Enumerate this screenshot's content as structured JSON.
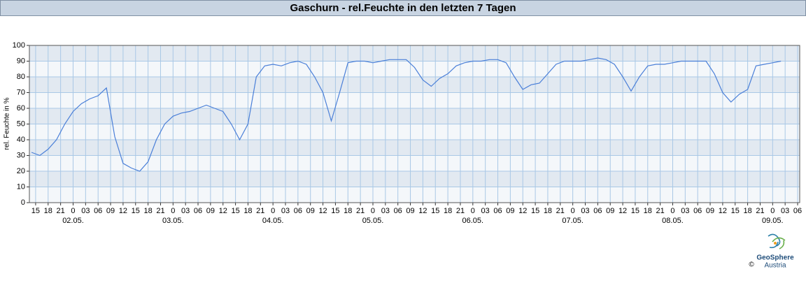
{
  "chart_data": {
    "type": "line",
    "title": "Gaschurn - rel.Feuchte in den letzten 7 Tagen",
    "ylabel": "rel. Feuchte in %",
    "x": [
      14,
      16,
      18,
      20,
      22,
      24,
      26,
      28,
      30,
      32,
      34,
      36,
      38,
      40,
      42,
      44,
      46,
      48,
      50,
      52,
      54,
      56,
      58,
      60,
      62,
      64,
      66,
      68,
      70,
      72,
      74,
      76,
      78,
      80,
      82,
      84,
      86,
      88,
      90,
      92,
      94,
      96,
      98,
      100,
      102,
      104,
      106,
      108,
      110,
      112,
      114,
      116,
      118,
      120,
      122,
      124,
      126,
      128,
      130,
      132,
      134,
      136,
      138,
      140,
      142,
      144,
      146,
      148,
      150,
      152,
      154,
      156,
      158,
      160,
      162,
      164,
      166,
      168,
      170,
      172,
      174,
      176,
      178,
      180,
      182,
      184,
      186,
      188,
      190,
      192,
      194
    ],
    "series": [
      {
        "color": "#4a7fd8",
        "values": [
          32,
          30,
          34,
          40,
          50,
          58,
          63,
          66,
          68,
          73,
          42,
          25,
          22,
          20,
          26,
          40,
          50,
          55,
          57,
          58,
          60,
          62,
          60,
          58,
          50,
          40,
          50,
          80,
          87,
          88,
          87,
          89,
          90,
          88,
          80,
          70,
          52,
          70,
          89,
          90,
          90,
          89,
          90,
          91,
          91,
          91,
          86,
          78,
          74,
          79,
          82,
          87,
          89,
          90,
          90,
          91,
          91,
          89,
          80,
          72,
          75,
          76,
          82,
          88,
          90,
          90,
          90,
          91,
          92,
          91,
          88,
          80,
          71,
          80,
          87,
          88,
          88,
          89,
          90,
          90,
          90,
          90,
          82,
          70,
          64,
          69,
          72,
          87,
          88,
          89,
          90
        ]
      }
    ],
    "xlim": [
      13.5,
      198.5
    ],
    "xticks": [
      15,
      18,
      21,
      {
        "value": 24,
        "label": "0"
      },
      {
        "value": 27,
        "label": "03"
      },
      {
        "value": 30,
        "label": "06"
      },
      {
        "value": 33,
        "label": "09"
      },
      {
        "value": 36,
        "label": "12"
      },
      {
        "value": 39,
        "label": "15"
      },
      {
        "value": 42,
        "label": "18"
      },
      {
        "value": 45,
        "label": "21"
      },
      {
        "value": 48,
        "label": "0"
      },
      {
        "value": 51,
        "label": "03"
      },
      {
        "value": 54,
        "label": "06"
      },
      {
        "value": 57,
        "label": "09"
      },
      {
        "value": 60,
        "label": "12"
      },
      {
        "value": 63,
        "label": "15"
      },
      {
        "value": 66,
        "label": "18"
      },
      {
        "value": 69,
        "label": "21"
      },
      {
        "value": 72,
        "label": "0"
      },
      {
        "value": 75,
        "label": "03"
      },
      {
        "value": 78,
        "label": "06"
      },
      {
        "value": 81,
        "label": "09"
      },
      {
        "value": 84,
        "label": "12"
      },
      {
        "value": 87,
        "label": "15"
      },
      {
        "value": 90,
        "label": "18"
      },
      {
        "value": 93,
        "label": "21"
      },
      {
        "value": 96,
        "label": "0"
      },
      {
        "value": 99,
        "label": "03"
      },
      {
        "value": 102,
        "label": "06"
      },
      {
        "value": 105,
        "label": "09"
      },
      {
        "value": 108,
        "label": "12"
      },
      {
        "value": 111,
        "label": "15"
      },
      {
        "value": 114,
        "label": "18"
      },
      {
        "value": 117,
        "label": "21"
      },
      {
        "value": 120,
        "label": "0"
      },
      {
        "value": 123,
        "label": "03"
      },
      {
        "value": 126,
        "label": "06"
      },
      {
        "value": 129,
        "label": "09"
      },
      {
        "value": 132,
        "label": "12"
      },
      {
        "value": 135,
        "label": "15"
      },
      {
        "value": 138,
        "label": "18"
      },
      {
        "value": 141,
        "label": "21"
      },
      {
        "value": 144,
        "label": "0"
      },
      {
        "value": 147,
        "label": "03"
      },
      {
        "value": 150,
        "label": "06"
      },
      {
        "value": 153,
        "label": "09"
      },
      {
        "value": 156,
        "label": "12"
      },
      {
        "value": 159,
        "label": "15"
      },
      {
        "value": 162,
        "label": "18"
      },
      {
        "value": 165,
        "label": "21"
      },
      {
        "value": 168,
        "label": "0"
      },
      {
        "value": 171,
        "label": "03"
      },
      {
        "value": 174,
        "label": "06"
      },
      {
        "value": 177,
        "label": "09"
      },
      {
        "value": 180,
        "label": "12"
      },
      {
        "value": 183,
        "label": "15"
      },
      {
        "value": 186,
        "label": "18"
      },
      {
        "value": 189,
        "label": "21"
      },
      {
        "value": 192,
        "label": "0"
      },
      {
        "value": 195,
        "label": "03"
      },
      {
        "value": 198,
        "label": "06"
      }
    ],
    "xdates": [
      {
        "value": 24,
        "label": "02.05."
      },
      {
        "value": 48,
        "label": "03.05."
      },
      {
        "value": 72,
        "label": "04.05."
      },
      {
        "value": 96,
        "label": "05.05."
      },
      {
        "value": 120,
        "label": "06.05."
      },
      {
        "value": 144,
        "label": "07.05."
      },
      {
        "value": 168,
        "label": "08.05."
      },
      {
        "value": 192,
        "label": "09.05."
      }
    ],
    "ylim": [
      0,
      100
    ],
    "yticks": [
      0,
      10,
      20,
      30,
      40,
      50,
      60,
      70,
      80,
      90,
      100
    ],
    "grid": true
  },
  "footer": {
    "logo": "GeoSphere",
    "sub": "Austria",
    "copyright": "©"
  }
}
